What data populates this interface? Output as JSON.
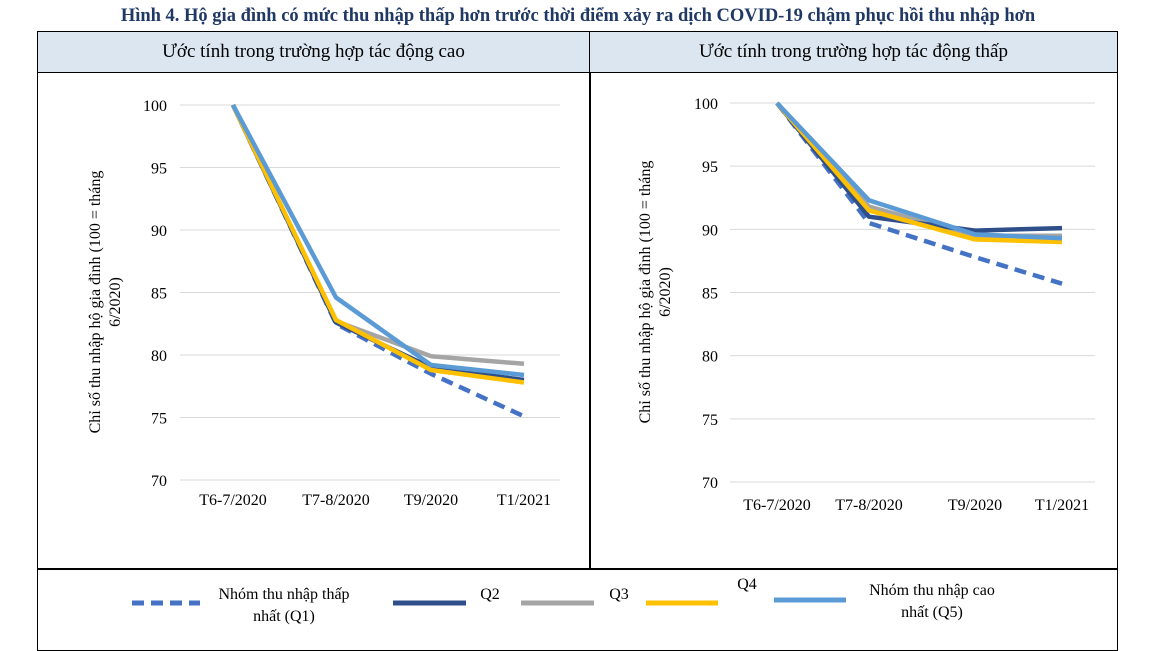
{
  "figure_title": "Hình 4. Hộ gia đình có mức thu nhập thấp hơn trước thời điểm xảy ra dịch COVID-19 chậm phục hồi thu nhập hơn",
  "colors": {
    "Q1": "#4472c4",
    "Q2": "#2f4f8a",
    "Q3": "#a5a5a5",
    "Q4": "#ffc000",
    "Q5": "#5b9bd5",
    "grid": "#d9d9d9",
    "header_bg": "#dce6f1",
    "title": "#1f3864"
  },
  "legend": [
    {
      "key": "Q1",
      "label_line1": "Nhóm thu nhập thấp",
      "label_line2": "nhất (Q1)",
      "dashed": true
    },
    {
      "key": "Q2",
      "label_line1": "Q2",
      "label_line2": "",
      "dashed": false
    },
    {
      "key": "Q3",
      "label_line1": "Q3",
      "label_line2": "",
      "dashed": false
    },
    {
      "key": "Q4",
      "label_line1": "Q4",
      "label_line2": "",
      "dashed": false
    },
    {
      "key": "Q5",
      "label_line1": "Nhóm thu nhập cao",
      "label_line2": "nhất (Q5)",
      "dashed": false
    }
  ],
  "chart_data": [
    {
      "type": "line",
      "title": "Ước tính trong trường hợp tác động cao",
      "ylabel_line1": "Chỉ số thu nhập hộ gia đình (100 = tháng",
      "ylabel_line2": "6/2020)",
      "categories": [
        "T6-7/2020",
        "T7-8/2020",
        "T9/2020",
        "T1/2021"
      ],
      "ylim": [
        70,
        100
      ],
      "yticks": [
        70,
        75,
        80,
        85,
        90,
        95,
        100
      ],
      "grid": true,
      "series": [
        {
          "name": "Q1",
          "values": [
            100,
            82.5,
            78.5,
            75.1
          ]
        },
        {
          "name": "Q3",
          "values": [
            100,
            82.7,
            79.9,
            79.3
          ]
        },
        {
          "name": "Q2",
          "values": [
            100,
            82.6,
            79.0,
            78.0
          ]
        },
        {
          "name": "Q4",
          "values": [
            100,
            82.8,
            78.8,
            77.8
          ]
        },
        {
          "name": "Q5",
          "values": [
            100,
            84.6,
            79.2,
            78.4
          ]
        }
      ]
    },
    {
      "type": "line",
      "title": "Ước tính trong trường hợp tác động thấp",
      "ylabel_line1": "Chỉ số thu nhập hộ gia đình (100 = tháng",
      "ylabel_line2": "6/2020)",
      "categories": [
        "T6-7/2020",
        "T7-8/2020",
        "T9/2020",
        "T1/2021"
      ],
      "ylim": [
        70,
        100
      ],
      "yticks": [
        70,
        75,
        80,
        85,
        90,
        95,
        100
      ],
      "grid": true,
      "series": [
        {
          "name": "Q1",
          "values": [
            100,
            90.5,
            87.8,
            85.7
          ]
        },
        {
          "name": "Q3",
          "values": [
            100,
            91.8,
            89.5,
            89.5
          ]
        },
        {
          "name": "Q2",
          "values": [
            100,
            91.0,
            89.9,
            90.1
          ]
        },
        {
          "name": "Q4",
          "values": [
            100,
            91.5,
            89.2,
            89.0
          ]
        },
        {
          "name": "Q5",
          "values": [
            100,
            92.3,
            89.6,
            89.3
          ]
        }
      ]
    }
  ]
}
